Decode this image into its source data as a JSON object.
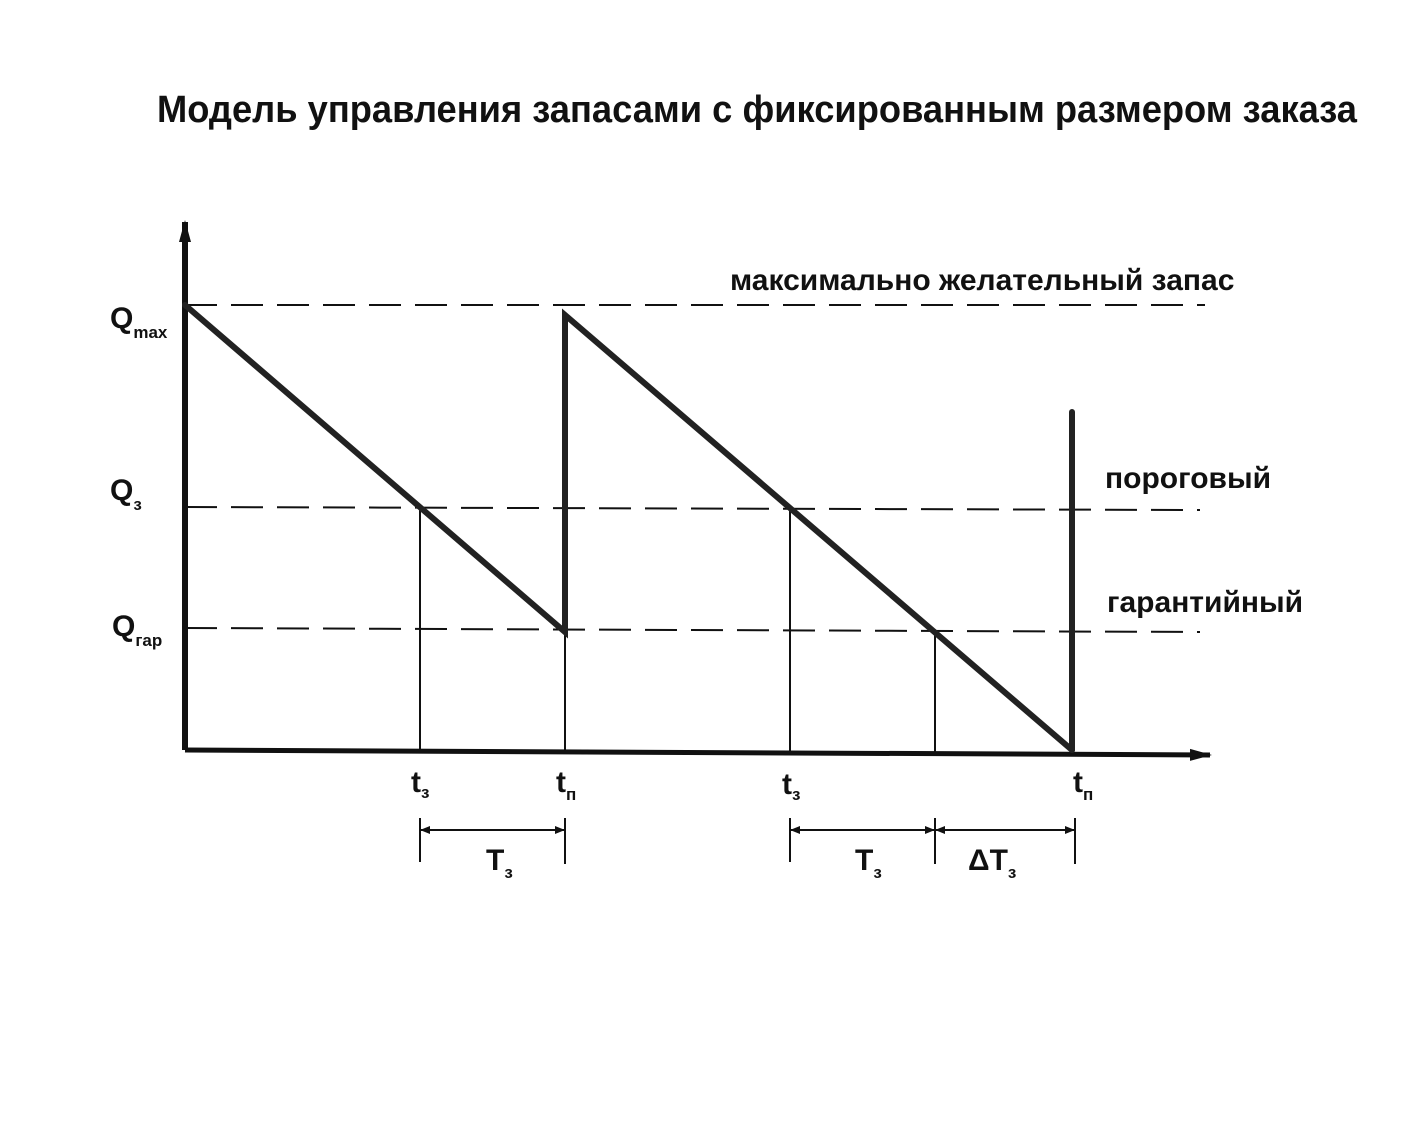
{
  "title": "Модель управления запасами с фиксированным размером заказа",
  "levels": [
    {
      "label": {
        "main": "Q",
        "sub": "max"
      },
      "name": "максимально желательный запас"
    },
    {
      "label": {
        "main": "Q",
        "sub": "з"
      },
      "name": "пороговый"
    },
    {
      "label": {
        "main": "Q",
        "sub": "гар"
      },
      "name": "гарантийный"
    }
  ],
  "time_labels": [
    {
      "main": "t",
      "sub": "з"
    },
    {
      "main": "t",
      "sub": "п"
    },
    {
      "main": "t",
      "sub": "з"
    },
    {
      "main": "t",
      "sub": "п"
    }
  ],
  "intervals": [
    {
      "main": "T",
      "sub": "з"
    },
    {
      "main": "T",
      "sub": "з"
    },
    {
      "main": "ΔT",
      "sub": "з"
    }
  ]
}
